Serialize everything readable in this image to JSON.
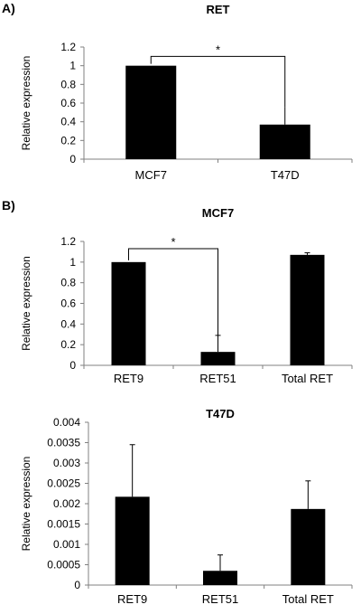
{
  "figure": {
    "panels": [
      {
        "label": "A)"
      },
      {
        "label": "B)"
      }
    ]
  },
  "chart_data": [
    {
      "type": "bar",
      "title": "RET",
      "ylabel": "Relative expression",
      "xlabel": "",
      "categories": [
        "MCF7",
        "T47D"
      ],
      "values": [
        1.0,
        0.37
      ],
      "errors": [
        0.0,
        0.19
      ],
      "ylim": [
        0,
        1.2
      ],
      "yticks": [
        0,
        0.2,
        0.4,
        0.6,
        0.8,
        1,
        1.2
      ],
      "ytick_labels": [
        "0",
        "0.2",
        "0.4",
        "0.6",
        "0.8",
        "1",
        "1.2"
      ],
      "bar_color": "#000000",
      "significance": [
        {
          "from": 0,
          "to": 1,
          "label": "*",
          "bracket_y": 1.1
        }
      ]
    },
    {
      "type": "bar",
      "title": "MCF7",
      "ylabel": "Relative expression",
      "xlabel": "",
      "categories": [
        "RET9",
        "RET51",
        "Total RET"
      ],
      "values": [
        1.0,
        0.13,
        1.07
      ],
      "errors": [
        0.0,
        0.16,
        0.02
      ],
      "ylim": [
        0,
        1.2
      ],
      "yticks": [
        0,
        0.2,
        0.4,
        0.6,
        0.8,
        1,
        1.2
      ],
      "ytick_labels": [
        "0",
        "0.2",
        "0.4",
        "0.6",
        "0.8",
        "1",
        "1.2"
      ],
      "bar_color": "#000000",
      "significance": [
        {
          "from": 0,
          "to": 1,
          "label": "*",
          "bracket_y": 1.13
        }
      ]
    },
    {
      "type": "bar",
      "title": "T47D",
      "ylabel": "Relative expression",
      "xlabel": "",
      "categories": [
        "RET9",
        "RET51",
        "Total RET"
      ],
      "values": [
        0.00217,
        0.00035,
        0.00187
      ],
      "errors": [
        0.00128,
        0.00039,
        0.00069
      ],
      "ylim": [
        0,
        0.004
      ],
      "yticks": [
        0,
        0.0005,
        0.001,
        0.0015,
        0.002,
        0.0025,
        0.003,
        0.0035,
        0.004
      ],
      "ytick_labels": [
        "0",
        "0.0005",
        "0.001",
        "0.0015",
        "0.002",
        "0.0025",
        "0.003",
        "0.0035",
        "0.004"
      ],
      "bar_color": "#000000",
      "significance": []
    }
  ]
}
